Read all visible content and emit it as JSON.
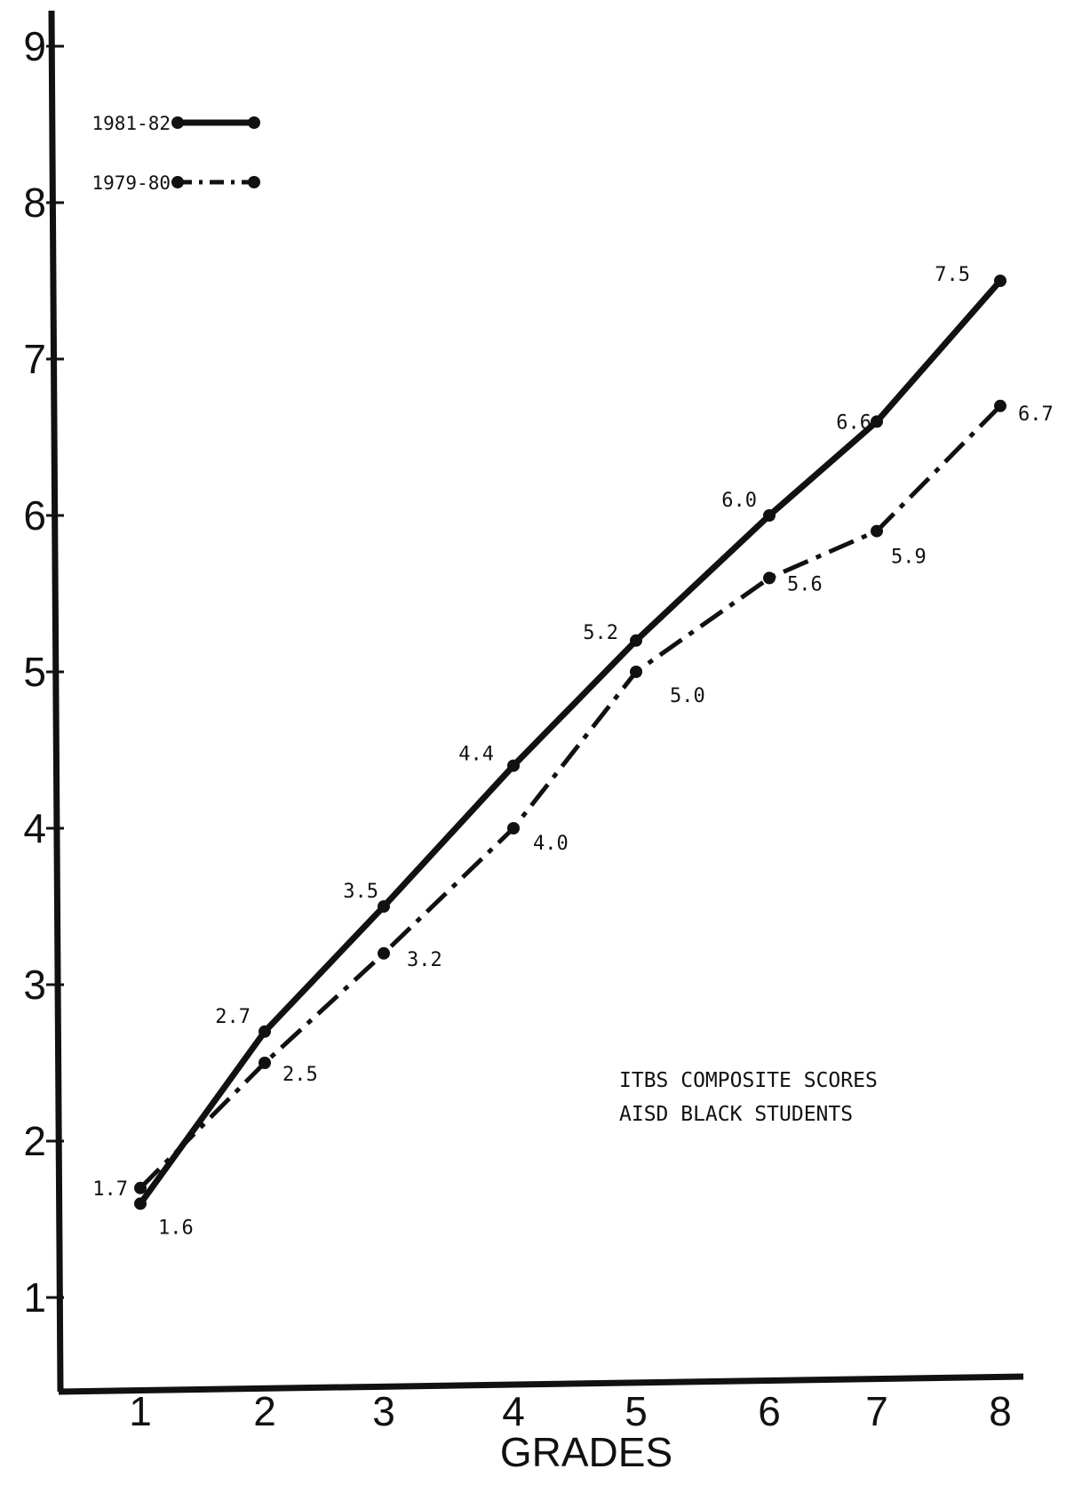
{
  "chart_data": {
    "type": "line",
    "xlabel": "GRADES",
    "ylabel": "",
    "categories": [
      "1",
      "2",
      "3",
      "4",
      "5",
      "6",
      "7",
      "8"
    ],
    "x": [
      1,
      2,
      3,
      4,
      5,
      6,
      7,
      8
    ],
    "ylim": [
      0.5,
      9.3
    ],
    "yticks": [
      "1",
      "2",
      "3",
      "4",
      "5",
      "6",
      "7",
      "8",
      "9"
    ],
    "legend_position": "top-left",
    "grid": false,
    "annotation": [
      "ITBS COMPOSITE SCORES",
      "AISD BLACK STUDENTS"
    ],
    "series": [
      {
        "name": "1981-82",
        "style": "solid",
        "values": [
          1.6,
          2.7,
          3.5,
          4.4,
          5.2,
          6.0,
          6.6,
          7.5
        ],
        "labels": [
          "1.6",
          "2.7",
          "3.5",
          "4.4",
          "5.2",
          "6.0",
          "6.6",
          "7.5"
        ]
      },
      {
        "name": "1979-80",
        "style": "dash-dot",
        "values": [
          1.7,
          2.5,
          3.2,
          4.0,
          5.0,
          5.6,
          5.9,
          6.7
        ],
        "labels": [
          "1.7",
          "2.5",
          "3.2",
          "4.0",
          "5.0",
          "5.6",
          "5.9",
          "6.7"
        ]
      }
    ]
  }
}
